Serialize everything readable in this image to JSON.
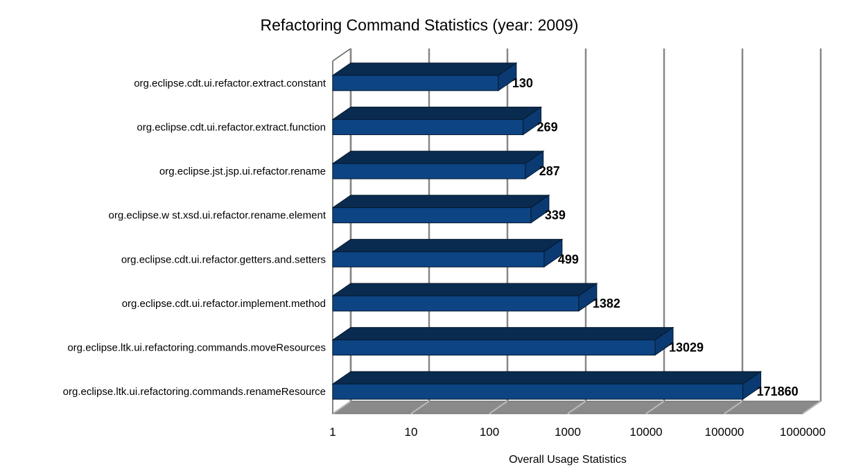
{
  "chart_data": {
    "type": "bar",
    "orientation": "horizontal",
    "x_scale": "log10",
    "title": "Refactoring Command Statistics (year: 2009)",
    "xlabel": "Overall Usage Statistics",
    "ylabel": "",
    "categories": [
      "org.eclipse.cdt.ui.refactor.extract.constant",
      "org.eclipse.cdt.ui.refactor.extract.function",
      "org.eclipse.jst.jsp.ui.refactor.rename",
      "org.eclipse.w st.xsd.ui.refactor.rename.element",
      "org.eclipse.cdt.ui.refactor.getters.and.setters",
      "org.eclipse.cdt.ui.refactor.implement.method",
      "org.eclipse.ltk.ui.refactoring.commands.moveResources",
      "org.eclipse.ltk.ui.refactoring.commands.renameResource"
    ],
    "values": [
      130,
      269,
      287,
      339,
      499,
      1382,
      13029,
      171860
    ],
    "value_labels": [
      "130",
      "269",
      "287",
      "339",
      "499",
      "1382",
      "13029",
      "171860"
    ],
    "x_ticks": [
      "1",
      "10",
      "100",
      "1000",
      "10000",
      "100000",
      "1000000"
    ],
    "xlim": [
      1,
      1000000
    ],
    "grid": true,
    "legend": false,
    "style": "3d",
    "colors": {
      "bar_front": "#0d4483",
      "bar_top": "#0a2b50",
      "bar_side": "#0b3a72",
      "bar_outline": "#04182e",
      "gridline": "#878787",
      "floor": "#8a8a8a",
      "floor_line": "#b9b9b9",
      "wall_edge": "#5f5f5f",
      "text": "#000000",
      "background": "#ffffff"
    }
  }
}
